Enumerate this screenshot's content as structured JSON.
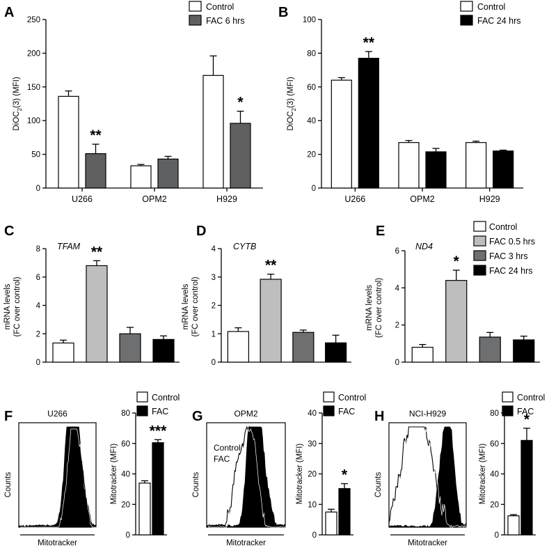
{
  "colors": {
    "control": "#ffffff",
    "fac_6": "#5f6061",
    "fac_24": "#000000",
    "fac_05": "#bebebe",
    "fac_3": "#6e6f70",
    "fac": "#000000"
  },
  "chart_data": [
    {
      "id": "A",
      "type": "bar",
      "panel_label": "A",
      "ylabel": "DiOC₂(3) (MFI)",
      "categories": [
        "U266",
        "OPM2",
        "H929"
      ],
      "ylim": [
        0,
        250
      ],
      "yticks": [
        0,
        50,
        100,
        150,
        200,
        250
      ],
      "series": [
        {
          "name": "Control",
          "values": [
            136,
            33,
            167
          ],
          "errors": [
            8,
            2,
            29
          ]
        },
        {
          "name": "FAC 6 hrs",
          "values": [
            51,
            43,
            96
          ],
          "errors": [
            14,
            4,
            18
          ]
        }
      ],
      "annotations": [
        {
          "category": "U266",
          "series": 1,
          "text": "**"
        },
        {
          "category": "H929",
          "series": 1,
          "text": "*"
        }
      ]
    },
    {
      "id": "B",
      "type": "bar",
      "panel_label": "B",
      "ylabel": "DiOC₂(3) (MFI)",
      "categories": [
        "U266",
        "OPM2",
        "H929"
      ],
      "ylim": [
        0,
        100
      ],
      "yticks": [
        0,
        20,
        40,
        60,
        80,
        100
      ],
      "series": [
        {
          "name": "Control",
          "values": [
            64,
            27,
            27
          ],
          "errors": [
            1.5,
            1.2,
            0.8
          ]
        },
        {
          "name": "FAC 24 hrs",
          "values": [
            77,
            21.5,
            22
          ],
          "errors": [
            4,
            2,
            0.5
          ]
        }
      ],
      "annotations": [
        {
          "category": "U266",
          "series": 1,
          "text": "**"
        }
      ]
    },
    {
      "id": "C",
      "type": "bar",
      "panel_label": "C",
      "gene": "TFAM",
      "ylabel": [
        "mRNA levels",
        "(FC over control)"
      ],
      "categories": [
        "Control",
        "FAC 0.5 hrs",
        "FAC 3 hrs",
        "FAC 24 hrs"
      ],
      "ylim": [
        0,
        8
      ],
      "yticks": [
        0,
        2,
        4,
        6,
        8
      ],
      "values": [
        1.35,
        6.8,
        2.0,
        1.6
      ],
      "errors": [
        0.2,
        0.35,
        0.45,
        0.25
      ],
      "annotations": [
        {
          "index": 1,
          "text": "**"
        }
      ]
    },
    {
      "id": "D",
      "type": "bar",
      "panel_label": "D",
      "gene": "CYTB",
      "ylabel": [
        "mRNA levels",
        "(FC over control)"
      ],
      "categories": [
        "Control",
        "FAC 0.5 hrs",
        "FAC 3 hrs",
        "FAC 24 hrs"
      ],
      "ylim": [
        0,
        4
      ],
      "yticks": [
        0,
        1,
        2,
        3,
        4
      ],
      "values": [
        1.08,
        2.92,
        1.05,
        0.68
      ],
      "errors": [
        0.13,
        0.18,
        0.08,
        0.27
      ],
      "annotations": [
        {
          "index": 1,
          "text": "**"
        }
      ]
    },
    {
      "id": "E",
      "type": "bar",
      "panel_label": "E",
      "gene": "ND4",
      "ylabel": [
        "mRNA levels",
        "(FC over control)"
      ],
      "categories": [
        "Control",
        "FAC 0.5 hrs",
        "FAC 3 hrs",
        "FAC 24 hrs"
      ],
      "ylim": [
        0,
        6
      ],
      "yticks": [
        0,
        2,
        4,
        6
      ],
      "values": [
        0.8,
        4.4,
        1.35,
        1.2
      ],
      "errors": [
        0.15,
        0.55,
        0.25,
        0.2
      ],
      "annotations": [
        {
          "index": 1,
          "text": "*"
        }
      ],
      "legend": [
        "Control",
        "FAC 0.5 hrs",
        "FAC 3 hrs",
        "FAC 24 hrs"
      ]
    },
    {
      "id": "F",
      "type": "bar",
      "panel_label": "F",
      "histogram_title": "U266",
      "histogram_xlabel": "Mitotracker",
      "histogram_ylabel": "Counts",
      "ylabel": "Mitotracker (MFI)",
      "categories": [
        "Control",
        "FAC"
      ],
      "ylim": [
        0,
        80
      ],
      "yticks": [
        0,
        20,
        40,
        60,
        80
      ],
      "values": [
        34,
        60.5
      ],
      "errors": [
        1.5,
        2
      ],
      "annotations": [
        {
          "index": 1,
          "text": "***"
        }
      ]
    },
    {
      "id": "G",
      "type": "bar",
      "panel_label": "G",
      "histogram_title": "OPM2",
      "histogram_xlabel": "Mitotracker",
      "histogram_ylabel": "Counts",
      "histogram_labels": [
        "Control",
        "FAC"
      ],
      "ylabel": "Mitotracker (MFI)",
      "categories": [
        "Control",
        "FAC"
      ],
      "ylim": [
        0,
        40
      ],
      "yticks": [
        0,
        10,
        20,
        30,
        40
      ],
      "values": [
        7.5,
        15.2
      ],
      "errors": [
        0.9,
        1.6
      ],
      "annotations": [
        {
          "index": 1,
          "text": "*"
        }
      ]
    },
    {
      "id": "H",
      "type": "bar",
      "panel_label": "H",
      "histogram_title": "NCI-H929",
      "histogram_xlabel": "Mitotracker",
      "histogram_ylabel": "Counts",
      "ylabel": "Mitotracker (MFI)",
      "categories": [
        "Control",
        "FAC"
      ],
      "ylim": [
        0,
        80
      ],
      "yticks": [
        0,
        20,
        40,
        60,
        80
      ],
      "values": [
        12.5,
        62
      ],
      "errors": [
        0.8,
        8
      ],
      "annotations": [
        {
          "index": 1,
          "text": "*"
        }
      ]
    }
  ]
}
